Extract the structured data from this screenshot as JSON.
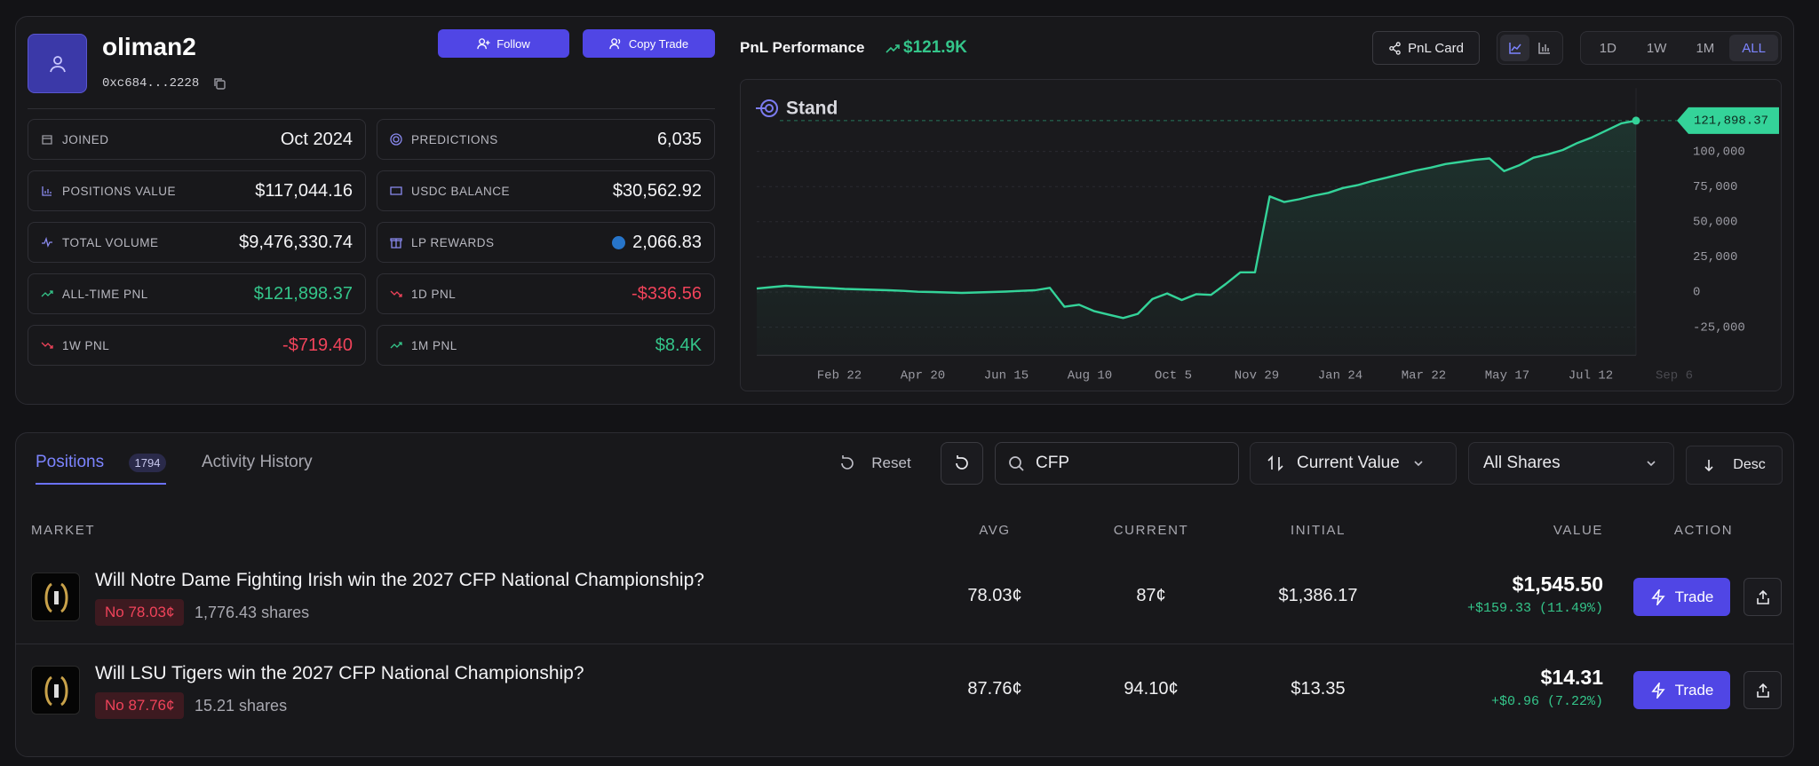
{
  "profile": {
    "name": "oliman2",
    "address": "0xc684...2228",
    "follow": "Follow",
    "copy_trade": "Copy Trade"
  },
  "stats": [
    {
      "label": "JOINED",
      "value": "Oct 2024"
    },
    {
      "label": "PREDICTIONS",
      "value": "6,035"
    },
    {
      "label": "POSITIONS VALUE",
      "value": "$117,044.16"
    },
    {
      "label": "USDC BALANCE",
      "value": "$30,562.92"
    },
    {
      "label": "TOTAL VOLUME",
      "value": "$9,476,330.74"
    },
    {
      "label": "LP REWARDS",
      "value": "2,066.83"
    },
    {
      "label": "ALL-TIME PNL",
      "value": "$121,898.37"
    },
    {
      "label": "1D PNL",
      "value": "-$336.56"
    },
    {
      "label": "1W PNL",
      "value": "-$719.40"
    },
    {
      "label": "1M PNL",
      "value": "$8.4K"
    }
  ],
  "pnl": {
    "title": "PnL Performance",
    "total": "$121.9K",
    "pnl_card": "PnL Card",
    "ranges": [
      "1D",
      "1W",
      "1M",
      "ALL"
    ],
    "chart": {
      "type": "line",
      "label": "Stand",
      "color": "#34d399",
      "grid": true,
      "values": [
        2500,
        3500,
        4400,
        3800,
        3300,
        2800,
        2200,
        1900,
        1600,
        1300,
        800,
        200,
        0,
        -300,
        -600,
        -300,
        0,
        300,
        800,
        1300,
        3000,
        -10500,
        -9000,
        -13500,
        -16000,
        -18500,
        -15500,
        -5000,
        -1000,
        -5700,
        -1500,
        -2000,
        5700,
        14000,
        14000,
        68000,
        64000,
        66000,
        68500,
        70500,
        74000,
        76000,
        79000,
        81400,
        84000,
        86500,
        88500,
        91000,
        92500,
        94000,
        95000,
        86000,
        90000,
        95500,
        98000,
        101000,
        106000,
        110000,
        115000,
        120000,
        121898.37
      ],
      "value_labels": {
        "60": "121,898.37"
      },
      "ylim": [
        -45000,
        145000
      ],
      "yticks": [
        {
          "value": 100000,
          "label": "100,000"
        },
        {
          "value": 75000,
          "label": "75,000"
        },
        {
          "value": 50000,
          "label": "50,000"
        },
        {
          "value": 25000,
          "label": "25,000"
        },
        0,
        {
          "value": -25000,
          "label": "-25,000"
        }
      ],
      "x_labels": [
        "Feb 22",
        "Apr 20",
        "Jun 15",
        "Aug 10",
        "Oct 5",
        "Nov 29",
        "Jan 24",
        "Mar 22",
        "May 17",
        "Jul 12",
        "Sep 6"
      ]
    }
  },
  "positions": {
    "tabs": [
      {
        "label": "Positions",
        "count": "1794"
      },
      {
        "label": "Activity History"
      }
    ],
    "toolbar": {
      "reset": "Reset",
      "search": "CFP",
      "sort": "Current Value",
      "filter": "All Shares",
      "order": "Desc"
    },
    "columns": [
      "MARKET",
      "AVG",
      "CURRENT",
      "INITIAL",
      "VALUE",
      "ACTION"
    ],
    "rows": [
      {
        "title": "Will Notre Dame Fighting Irish win the 2027 CFP National Championship?",
        "outcome": "No 78.03¢",
        "shares": "1,776.43 shares",
        "avg": "78.03¢",
        "current": "87¢",
        "initial": "$1,386.17",
        "value": "$1,545.50",
        "change": "+$159.33 (11.49%)",
        "action": "Trade"
      },
      {
        "title": "Will LSU Tigers win the 2027 CFP National Championship?",
        "outcome": "No 87.76¢",
        "shares": "15.21 shares",
        "avg": "87.76¢",
        "current": "94.10¢",
        "initial": "$13.35",
        "value": "$14.31",
        "change": "+$0.96 (7.22%)",
        "action": "Trade"
      }
    ]
  }
}
